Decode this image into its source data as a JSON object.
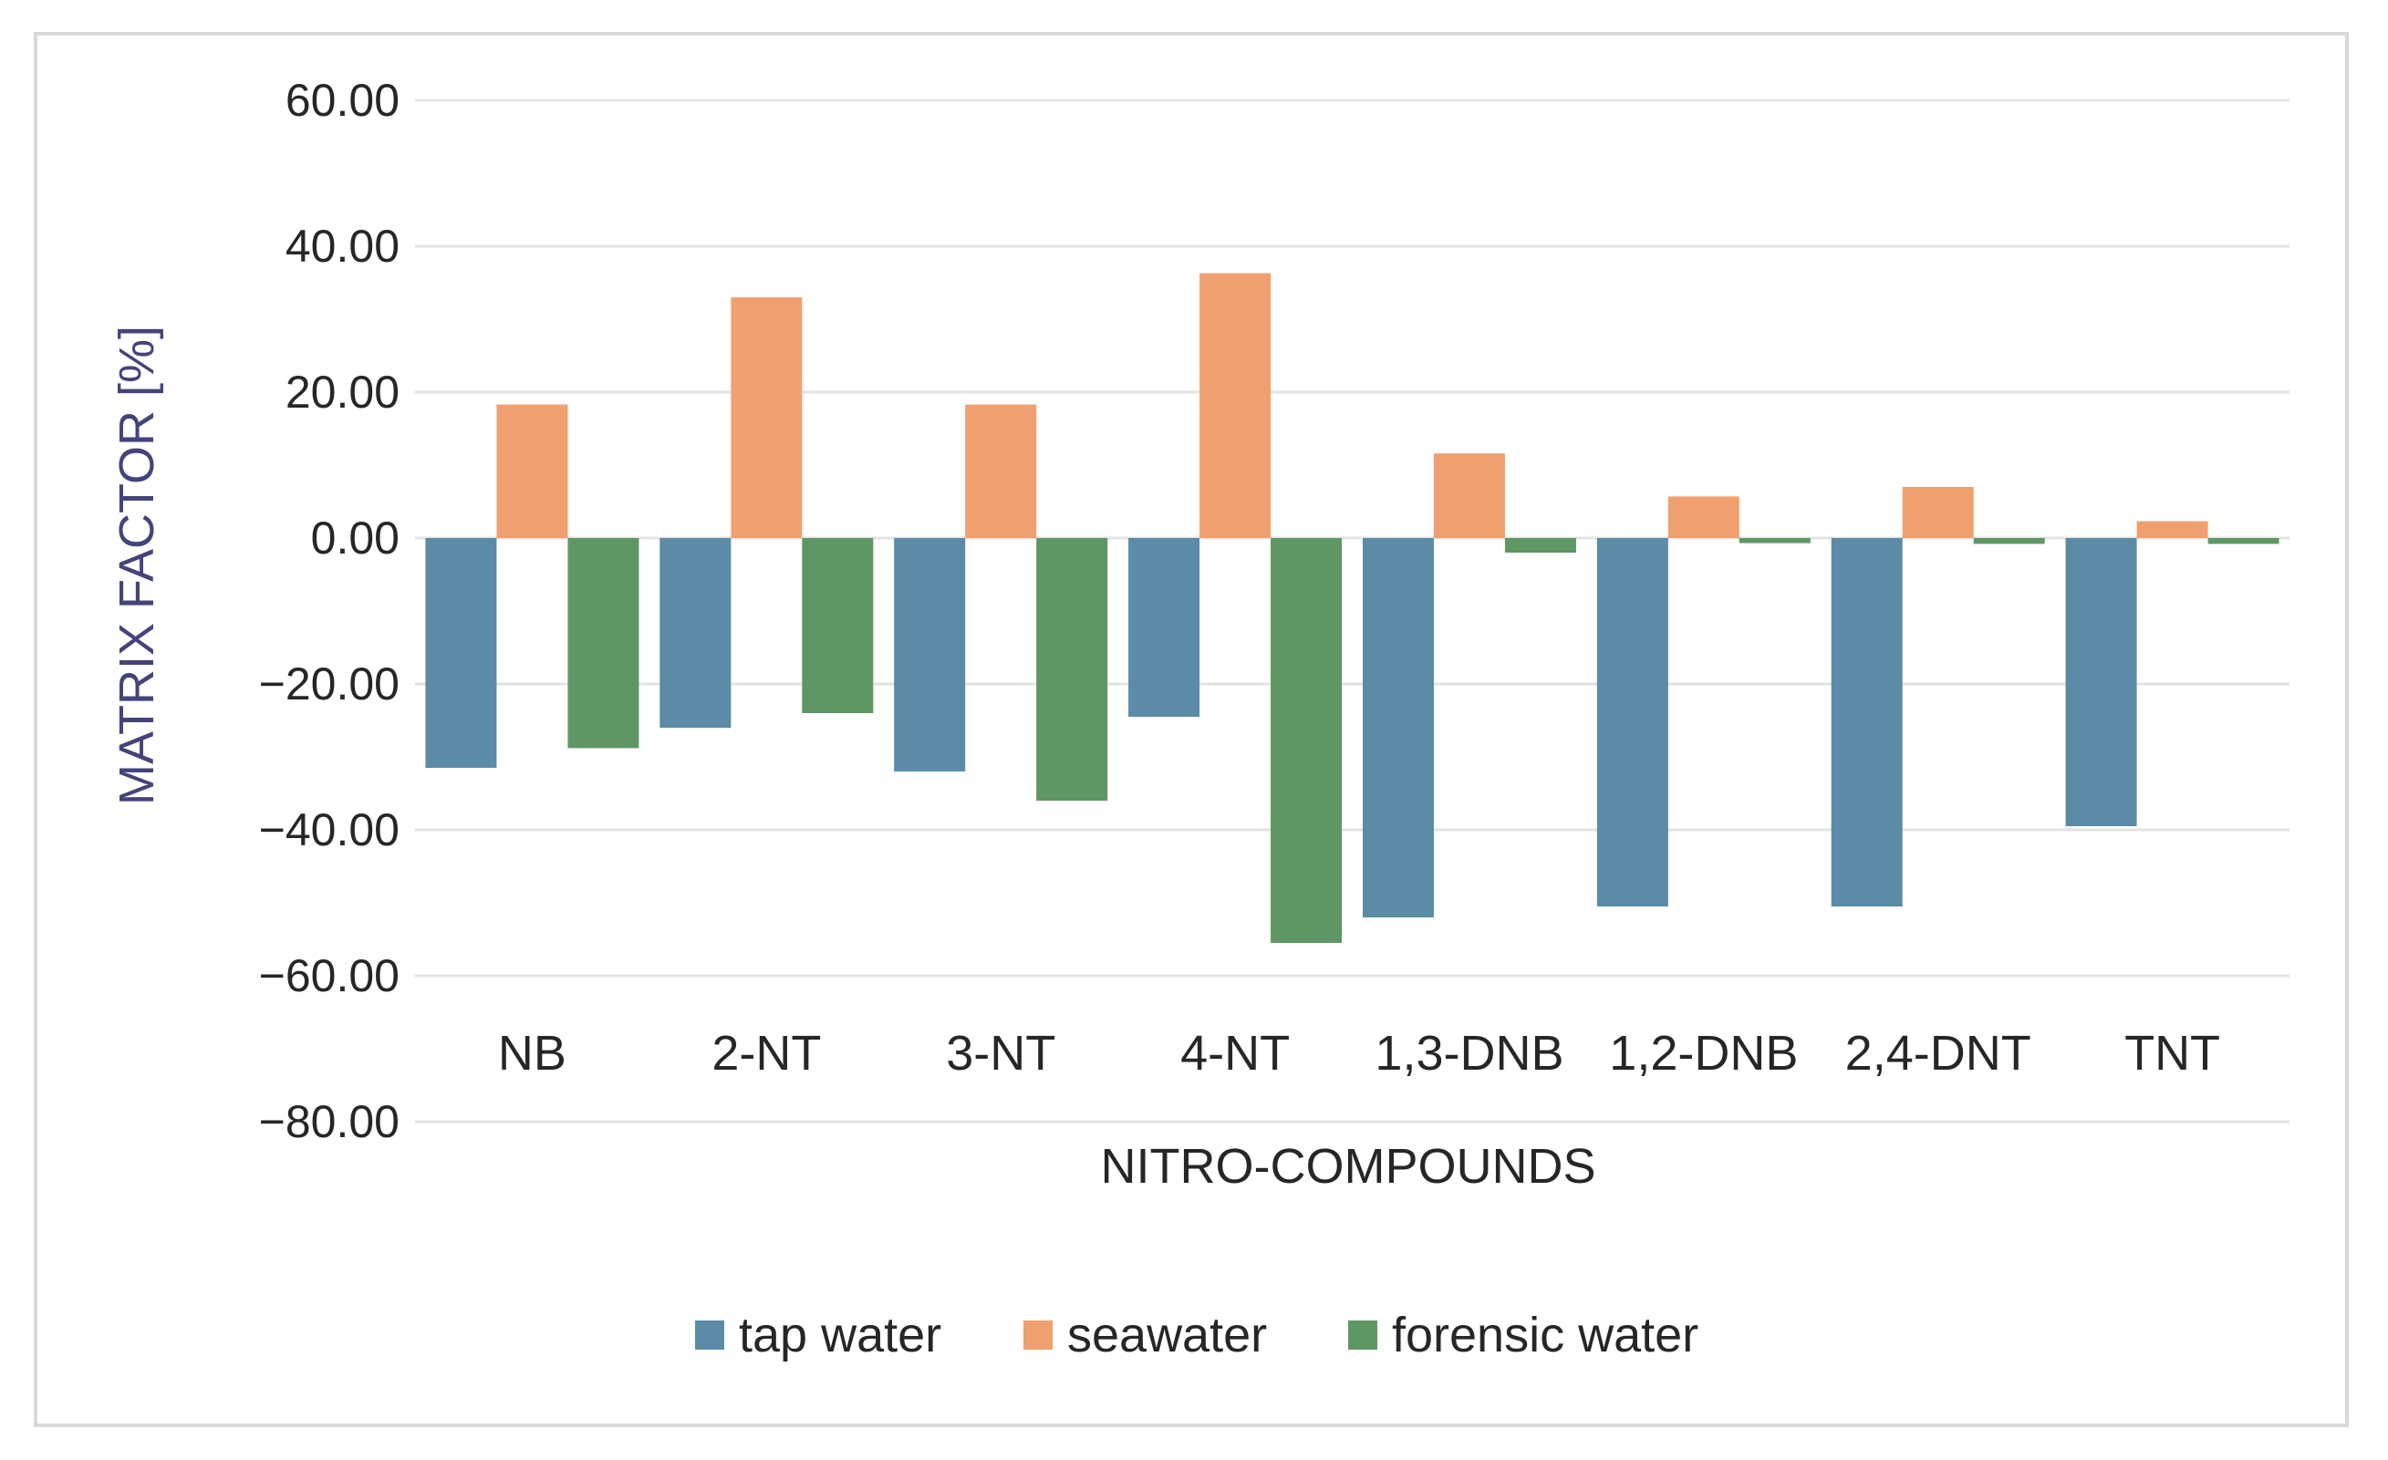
{
  "chart_data": {
    "type": "bar",
    "title": "",
    "xlabel": "NITRO-COMPOUNDS",
    "ylabel": "MATRIX FACTOR [%]",
    "ylim": [
      -80,
      60
    ],
    "yticks": [
      60,
      40,
      20,
      0,
      -20,
      -40,
      -60,
      -80
    ],
    "ytick_labels": [
      "60.00",
      "40.00",
      "20.00",
      "0.00",
      "−20.00",
      "−40.00",
      "−60.00",
      "−80.00"
    ],
    "grid": true,
    "legend_position": "bottom",
    "categories": [
      "NB",
      "2-NT",
      "3-NT",
      "4-NT",
      "1,3-DNB",
      "1,2-DNB",
      "2,4-DNT",
      "TNT"
    ],
    "series": [
      {
        "name": "tap water",
        "color": "#5b8ba6",
        "values": [
          -31.5,
          -26.0,
          -32.0,
          -24.5,
          -52.0,
          -50.5,
          -50.5,
          -39.5
        ]
      },
      {
        "name": "seawater",
        "color": "#f0a070",
        "values": [
          18.3,
          33.0,
          18.3,
          36.3,
          11.6,
          5.7,
          7.0,
          2.3
        ]
      },
      {
        "name": "forensic water",
        "color": "#5e9764",
        "values": [
          -28.8,
          -24.0,
          -36.0,
          -55.5,
          -2.0,
          -0.7,
          -0.8,
          -0.8
        ]
      }
    ]
  }
}
